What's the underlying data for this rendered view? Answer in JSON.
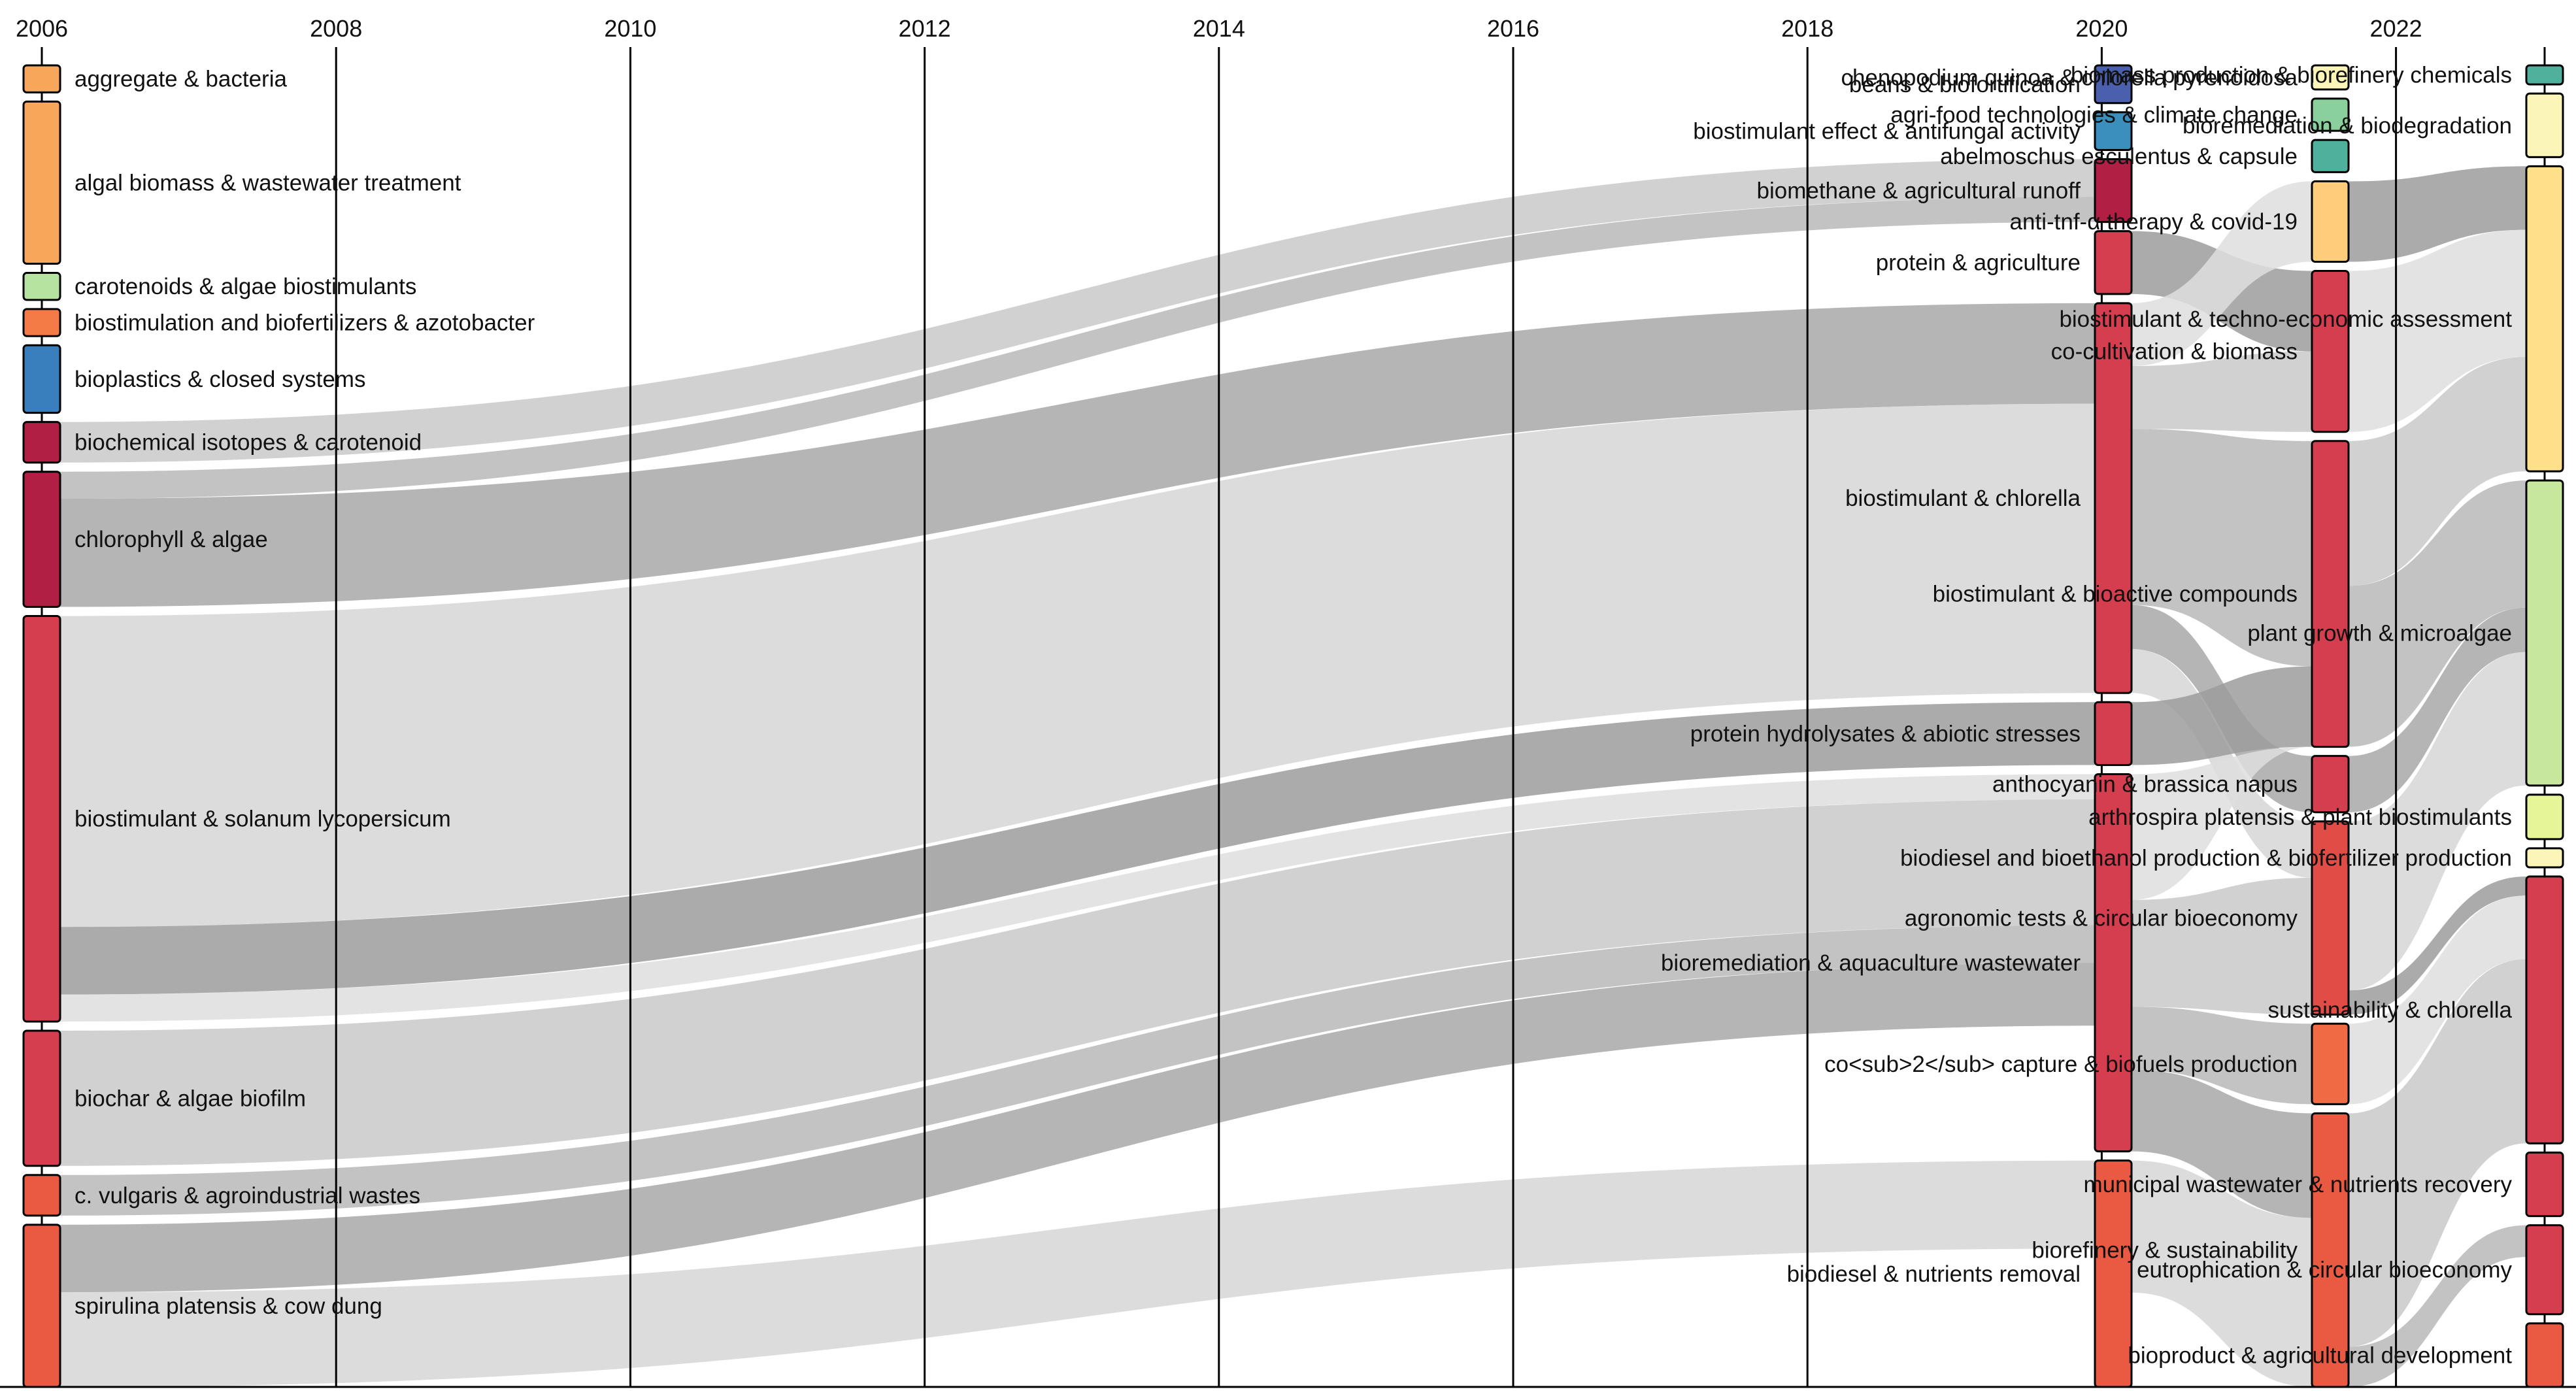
{
  "chart_data": {
    "type": "alluvial",
    "title": "",
    "x_axis": {
      "years": [
        "2006",
        "2008",
        "2010",
        "2012",
        "2014",
        "2016",
        "2018",
        "2020",
        "2022"
      ]
    },
    "stages": [
      {
        "year": "2006",
        "label_side": "right",
        "nodes": [
          {
            "id": "a1",
            "label": "aggregate & bacteria",
            "weight": 2,
            "color": "#f8a65a"
          },
          {
            "id": "a2",
            "label": "algal biomass & wastewater treatment",
            "weight": 12,
            "color": "#f8a65a"
          },
          {
            "id": "a3",
            "label": "carotenoids & algae biostimulants",
            "weight": 2,
            "color": "#b7e3a0"
          },
          {
            "id": "a4",
            "label": "biostimulation and biofertilizers & azotobacter",
            "weight": 2,
            "color": "#f47b45"
          },
          {
            "id": "a5",
            "label": "bioplastics & closed systems",
            "weight": 5,
            "color": "#3a7fbd"
          },
          {
            "id": "a6",
            "label": "biochemical isotopes & carotenoid",
            "weight": 3,
            "color": "#b11f45"
          },
          {
            "id": "a7",
            "label": "chlorophyll & algae",
            "weight": 10,
            "color": "#b11f45"
          },
          {
            "id": "a8",
            "label": "biostimulant & solanum lycopersicum",
            "weight": 30,
            "color": "#d53e4f"
          },
          {
            "id": "a9",
            "label": "biochar & algae biofilm",
            "weight": 10,
            "color": "#d53e4f"
          },
          {
            "id": "a10",
            "label": "c. vulgaris & agroindustrial wastes",
            "weight": 3,
            "color": "#ea5a43"
          },
          {
            "id": "a11",
            "label": "spirulina platensis & cow dung",
            "weight": 12,
            "color": "#ea5a43"
          }
        ]
      },
      {
        "year": "2020",
        "label_side": "left",
        "nodes": [
          {
            "id": "b1",
            "label": "beans & biofortification",
            "weight": 3,
            "color": "#4a5fae"
          },
          {
            "id": "b2",
            "label": "biostimulant effect & antifungal activity",
            "weight": 3,
            "color": "#3a8fbd"
          },
          {
            "id": "b3",
            "label": "biomethane & agricultural runoff",
            "weight": 5,
            "color": "#b11f45"
          },
          {
            "id": "b4",
            "label": "protein & agriculture",
            "weight": 5,
            "color": "#d53e4f"
          },
          {
            "id": "b5",
            "label": "biostimulant & chlorella",
            "weight": 31,
            "color": "#d53e4f"
          },
          {
            "id": "b6",
            "label": "protein hydrolysates & abiotic stresses",
            "weight": 5,
            "color": "#d53e4f"
          },
          {
            "id": "b7",
            "label": "bioremediation & aquaculture wastewater",
            "weight": 30,
            "color": "#d53e4f"
          },
          {
            "id": "b8",
            "label": "biodiesel & nutrients removal",
            "weight": 18,
            "color": "#ea5a43"
          }
        ]
      },
      {
        "year": "2021",
        "label_side": "left",
        "nodes": [
          {
            "id": "c1",
            "label": "chenopodium quinoa & chlorella pyrenoidosa",
            "weight": 1.5,
            "color": "#fbf6b8"
          },
          {
            "id": "c2",
            "label": "agri-food technologies & climate change",
            "weight": 2,
            "color": "#8ad09c"
          },
          {
            "id": "c3",
            "label": "abelmoschus esculentus & capsule",
            "weight": 2,
            "color": "#4fb09c"
          },
          {
            "id": "c4",
            "label": "anti-tnf-α therapy & covid-19",
            "weight": 5,
            "color": "#fdcd7a"
          },
          {
            "id": "c5",
            "label": "co-cultivation & biomass",
            "weight": 10,
            "color": "#d53e4f"
          },
          {
            "id": "c6",
            "label": "biostimulant & bioactive compounds",
            "weight": 19,
            "color": "#d53e4f"
          },
          {
            "id": "c7",
            "label": "anthocyanin & brassica napus",
            "weight": 3.5,
            "color": "#d53e4f"
          },
          {
            "id": "c8",
            "label": "agronomic tests & circular bioeconomy",
            "weight": 12,
            "color": "#e14d46"
          },
          {
            "id": "c9",
            "label": "co<sub>2</sub> capture & biofuels production",
            "weight": 5,
            "color": "#f06a44"
          },
          {
            "id": "c10",
            "label": "biorefinery & sustainability",
            "weight": 17,
            "color": "#ea5a43"
          }
        ]
      },
      {
        "year": "2023",
        "label_side": "left",
        "nodes": [
          {
            "id": "d1",
            "label": "biomass production & biorefinery chemicals",
            "weight": 1.5,
            "color": "#4fb09c"
          },
          {
            "id": "d2",
            "label": "bioremediation & biodegradation",
            "weight": 5,
            "color": "#fbf6b8"
          },
          {
            "id": "d3",
            "label": "biostimulant & techno-economic assessment",
            "weight": 24,
            "color": "#fee08b"
          },
          {
            "id": "d4",
            "label": "plant growth & microalgae",
            "weight": 24,
            "color": "#c6e79c"
          },
          {
            "id": "d5",
            "label": "arthrospira platensis & plant biostimulants",
            "weight": 3.5,
            "color": "#e6f598"
          },
          {
            "id": "d6",
            "label": "biodiesel and bioethanol production & biofertilizer production",
            "weight": 1.5,
            "color": "#fbf6b8"
          },
          {
            "id": "d7",
            "label": "sustainability & chlorella",
            "weight": 21,
            "color": "#d53e4f"
          },
          {
            "id": "d8",
            "label": "municipal wastewater & nutrients recovery",
            "weight": 5,
            "color": "#d53e4f"
          },
          {
            "id": "d9",
            "label": "eutrophication & circular bioeconomy",
            "weight": 7,
            "color": "#d53e4f"
          },
          {
            "id": "d10",
            "label": "bioproduct & agricultural development",
            "weight": 5,
            "color": "#ea5a43"
          }
        ]
      }
    ],
    "flows": [
      {
        "from": "a6",
        "to": "b3",
        "weight": 3
      },
      {
        "from": "a7",
        "to": "b3",
        "weight": 2
      },
      {
        "from": "a7",
        "to": "b5",
        "weight": 8
      },
      {
        "from": "a8",
        "to": "b5",
        "weight": 23
      },
      {
        "from": "a8",
        "to": "b6",
        "weight": 5
      },
      {
        "from": "a8",
        "to": "b7",
        "weight": 2
      },
      {
        "from": "a9",
        "to": "b7",
        "weight": 10
      },
      {
        "from": "a10",
        "to": "b7",
        "weight": 3
      },
      {
        "from": "a11",
        "to": "b7",
        "weight": 5
      },
      {
        "from": "a11",
        "to": "b8",
        "weight": 7
      },
      {
        "from": "b4",
        "to": "c5",
        "weight": 5
      },
      {
        "from": "b5",
        "to": "c4",
        "weight": 5
      },
      {
        "from": "b5",
        "to": "c5",
        "weight": 5
      },
      {
        "from": "b5",
        "to": "c6",
        "weight": 14
      },
      {
        "from": "b5",
        "to": "c7",
        "weight": 3.5
      },
      {
        "from": "b5",
        "to": "c8",
        "weight": 3.5
      },
      {
        "from": "b6",
        "to": "c6",
        "weight": 5
      },
      {
        "from": "b7",
        "to": "c6",
        "weight": 10
      },
      {
        "from": "b7",
        "to": "c8",
        "weight": 8.5
      },
      {
        "from": "b7",
        "to": "c9",
        "weight": 5
      },
      {
        "from": "b7",
        "to": "c10",
        "weight": 6.5
      },
      {
        "from": "b8",
        "to": "c10",
        "weight": 10.5
      },
      {
        "from": "c4",
        "to": "d3",
        "weight": 5
      },
      {
        "from": "c5",
        "to": "d3",
        "weight": 10
      },
      {
        "from": "c6",
        "to": "d3",
        "weight": 9
      },
      {
        "from": "c6",
        "to": "d4",
        "weight": 10
      },
      {
        "from": "c7",
        "to": "d4",
        "weight": 3.5
      },
      {
        "from": "c8",
        "to": "d4",
        "weight": 10.5
      },
      {
        "from": "c8",
        "to": "d7",
        "weight": 1.5
      },
      {
        "from": "c9",
        "to": "d7",
        "weight": 5
      },
      {
        "from": "c10",
        "to": "d7",
        "weight": 14.5
      },
      {
        "from": "c10",
        "to": "d9",
        "weight": 2.5
      }
    ]
  }
}
